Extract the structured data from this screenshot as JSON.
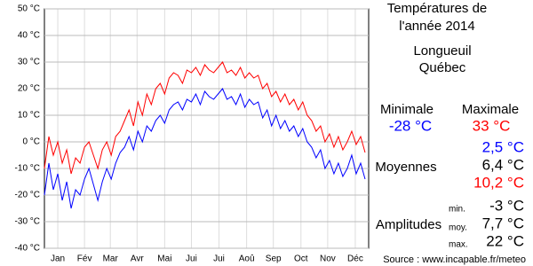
{
  "chart_data": {
    "type": "line",
    "title": [
      "Températures de",
      "l'année 2014"
    ],
    "location": [
      "Longueuil",
      "Québec"
    ],
    "x": [
      1,
      6,
      11,
      16,
      21,
      26,
      31,
      36,
      41,
      46,
      51,
      56,
      61,
      66,
      71,
      76,
      81,
      86,
      91,
      96,
      101,
      106,
      111,
      116,
      121,
      126,
      131,
      136,
      141,
      146,
      151,
      156,
      161,
      166,
      171,
      176,
      181,
      186,
      191,
      196,
      201,
      206,
      211,
      216,
      221,
      226,
      231,
      236,
      241,
      246,
      251,
      256,
      261,
      266,
      271,
      276,
      281,
      286,
      291,
      296,
      301,
      306,
      311,
      316,
      321,
      326,
      331,
      336,
      341,
      346,
      351,
      356,
      361
    ],
    "xlim": [
      1,
      365
    ],
    "xticks": [
      {
        "value": 16,
        "label": "Jan"
      },
      {
        "value": 46,
        "label": "Fév"
      },
      {
        "value": 75,
        "label": "Mar"
      },
      {
        "value": 105,
        "label": "Avr"
      },
      {
        "value": 136,
        "label": "Mai"
      },
      {
        "value": 166,
        "label": "Jui"
      },
      {
        "value": 197,
        "label": "Jui"
      },
      {
        "value": 228,
        "label": "Aoû"
      },
      {
        "value": 258,
        "label": "Sep"
      },
      {
        "value": 289,
        "label": "Oct"
      },
      {
        "value": 319,
        "label": "Nov"
      },
      {
        "value": 350,
        "label": "Déc"
      }
    ],
    "ylim": [
      -40,
      50
    ],
    "yticks": [
      {
        "value": -40,
        "label": "-40 °C"
      },
      {
        "value": -30,
        "label": "-30 °C"
      },
      {
        "value": -20,
        "label": "-20 °C"
      },
      {
        "value": -10,
        "label": "-10 °C"
      },
      {
        "value": 0,
        "label": "0 °C"
      },
      {
        "value": 10,
        "label": "10 °C"
      },
      {
        "value": 20,
        "label": "20 °C"
      },
      {
        "value": 30,
        "label": "30 °C"
      },
      {
        "value": 40,
        "label": "40 °C"
      },
      {
        "value": 50,
        "label": "50 °C"
      }
    ],
    "grid": true,
    "series": [
      {
        "name": "Minimale",
        "color": "#0000ff",
        "values": [
          -20,
          -8,
          -18,
          -12,
          -22,
          -15,
          -25,
          -18,
          -20,
          -14,
          -10,
          -16,
          -22,
          -15,
          -10,
          -14,
          -8,
          -4,
          -2,
          2,
          -3,
          4,
          0,
          6,
          4,
          8,
          10,
          7,
          12,
          14,
          15,
          12,
          16,
          15,
          18,
          14,
          19,
          17,
          16,
          18,
          20,
          16,
          17,
          14,
          18,
          13,
          16,
          14,
          15,
          9,
          12,
          6,
          10,
          5,
          8,
          4,
          6,
          2,
          5,
          0,
          -2,
          -6,
          -3,
          -10,
          -7,
          -12,
          -8,
          -13,
          -10,
          -5,
          -12,
          -8,
          -14
        ]
      },
      {
        "name": "Maximale",
        "color": "#ff0000",
        "values": [
          -10,
          2,
          -5,
          0,
          -8,
          -3,
          -12,
          -6,
          -8,
          -2,
          0,
          -5,
          -10,
          -3,
          0,
          -5,
          2,
          4,
          8,
          12,
          6,
          15,
          10,
          18,
          14,
          20,
          22,
          18,
          24,
          26,
          25,
          22,
          27,
          26,
          28,
          25,
          29,
          27,
          26,
          28,
          30,
          26,
          27,
          25,
          28,
          24,
          26,
          24,
          25,
          20,
          22,
          17,
          19,
          15,
          18,
          14,
          16,
          12,
          15,
          10,
          8,
          4,
          6,
          0,
          3,
          -2,
          2,
          -3,
          0,
          4,
          -1,
          2,
          -4
        ]
      }
    ],
    "stats": {
      "extremes": [
        {
          "label": "Minimale",
          "value": "-28 °C"
        },
        {
          "label": "Maximale",
          "value": "33 °C"
        }
      ],
      "moyennes": {
        "label": "Moyennes",
        "values": [
          "2,5 °C",
          "6,4 °C",
          "10,2 °C"
        ]
      },
      "amplitudes": {
        "label": "Amplitudes",
        "rows": [
          {
            "label": "min.",
            "value": "-3 °C"
          },
          {
            "label": "moy.",
            "value": "7,7 °C"
          },
          {
            "label": "max.",
            "value": "22 °C"
          }
        ]
      }
    },
    "source": "Source : www.incapable.fr/meteo"
  }
}
